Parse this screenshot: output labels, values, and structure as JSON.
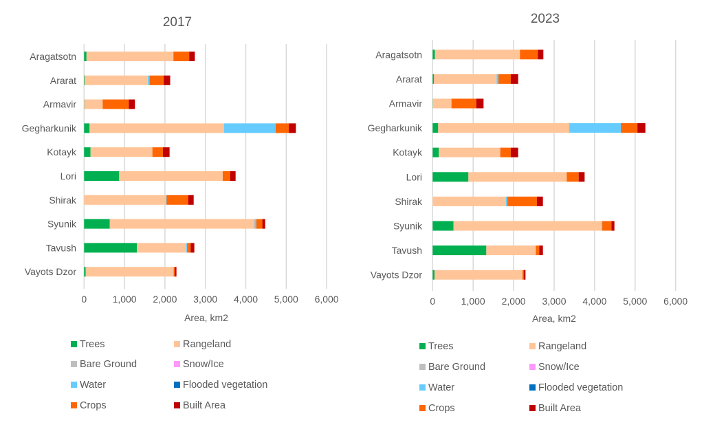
{
  "chart_data": [
    {
      "type": "bar",
      "orientation": "horizontal",
      "stacked": true,
      "title": "2017",
      "xlabel": "Area, km2",
      "ylabel": "",
      "xlim": [
        0,
        6000
      ],
      "xticks": [
        0,
        1000,
        2000,
        3000,
        4000,
        5000,
        6000
      ],
      "xtick_labels": [
        "0",
        "1,000",
        "2,000",
        "3,000",
        "4,000",
        "5,000",
        "6,000"
      ],
      "grid": true,
      "legend_position": "bottom",
      "categories": [
        "Aragatsotn",
        "Ararat",
        "Armavir",
        "Gegharkunik",
        "Kotayk",
        "Lori",
        "Shirak",
        "Syunik",
        "Tavush",
        "Vayots Dzor"
      ],
      "series": [
        {
          "name": "Trees",
          "color": "#00b050",
          "values": [
            60,
            15,
            5,
            136,
            160,
            868,
            0,
            636,
            1305,
            40
          ]
        },
        {
          "name": "Rangeland",
          "color": "#ffc599",
          "values": [
            2150,
            1565,
            455,
            3324,
            1530,
            2562,
            2019,
            3554,
            1225,
            2160
          ]
        },
        {
          "name": "Bare Ground",
          "color": "#bfbfbf",
          "values": [
            0,
            0,
            0,
            0,
            0,
            0,
            0,
            40,
            0,
            0
          ]
        },
        {
          "name": "Snow/Ice",
          "color": "#ff99ff",
          "values": [
            0,
            0,
            0,
            0,
            0,
            0,
            0,
            0,
            0,
            0
          ]
        },
        {
          "name": "Water",
          "color": "#66ccff",
          "values": [
            0,
            40,
            0,
            1280,
            0,
            0,
            22,
            30,
            18,
            23
          ]
        },
        {
          "name": "Flooded vegetation",
          "color": "#0070c0",
          "values": [
            0,
            0,
            0,
            0,
            0,
            0,
            0,
            0,
            0,
            0
          ]
        },
        {
          "name": "Crops",
          "color": "#ff6600",
          "values": [
            390,
            350,
            645,
            325,
            260,
            182,
            534,
            150,
            88,
            22
          ]
        },
        {
          "name": "Built Area",
          "color": "#c00000",
          "values": [
            140,
            160,
            153,
            175,
            165,
            136,
            136,
            70,
            91,
            40
          ]
        }
      ]
    },
    {
      "type": "bar",
      "orientation": "horizontal",
      "stacked": true,
      "title": "2023",
      "xlabel": "Area, km2",
      "ylabel": "",
      "xlim": [
        0,
        6000
      ],
      "xticks": [
        0,
        1000,
        2000,
        3000,
        4000,
        5000,
        6000
      ],
      "xtick_labels": [
        "0",
        "1,000",
        "2,000",
        "3,000",
        "4,000",
        "5,000",
        "6,000"
      ],
      "grid": true,
      "legend_position": "bottom",
      "categories": [
        "Aragatsotn",
        "Ararat",
        "Armavir",
        "Gegharkunik",
        "Kotayk",
        "Lori",
        "Shirak",
        "Syunik",
        "Tavush",
        "Vayots Dzor"
      ],
      "series": [
        {
          "name": "Trees",
          "color": "#00b050",
          "values": [
            57,
            29,
            5,
            136,
            153,
            883,
            0,
            516,
            1325,
            46
          ]
        },
        {
          "name": "Rangeland",
          "color": "#ffc599",
          "values": [
            2089,
            1551,
            460,
            3238,
            1512,
            2428,
            1800,
            3656,
            1223,
            2173
          ]
        },
        {
          "name": "Bare Ground",
          "color": "#bfbfbf",
          "values": [
            0,
            0,
            0,
            0,
            0,
            0,
            0,
            0,
            0,
            0
          ]
        },
        {
          "name": "Snow/Ice",
          "color": "#ff99ff",
          "values": [
            10,
            0,
            0,
            0,
            5,
            0,
            10,
            0,
            0,
            0
          ]
        },
        {
          "name": "Water",
          "color": "#66ccff",
          "values": [
            0,
            45,
            0,
            1274,
            0,
            0,
            36,
            17,
            0,
            0
          ]
        },
        {
          "name": "Flooded vegetation",
          "color": "#0070c0",
          "values": [
            0,
            0,
            0,
            0,
            0,
            0,
            0,
            0,
            0,
            0
          ]
        },
        {
          "name": "Crops",
          "color": "#ff6600",
          "values": [
            442,
            305,
            612,
            408,
            260,
            295,
            730,
            226,
            85,
            29
          ]
        },
        {
          "name": "Built Area",
          "color": "#c00000",
          "values": [
            136,
            182,
            180,
            198,
            182,
            147,
            147,
            74,
            90,
            45
          ]
        }
      ]
    }
  ]
}
